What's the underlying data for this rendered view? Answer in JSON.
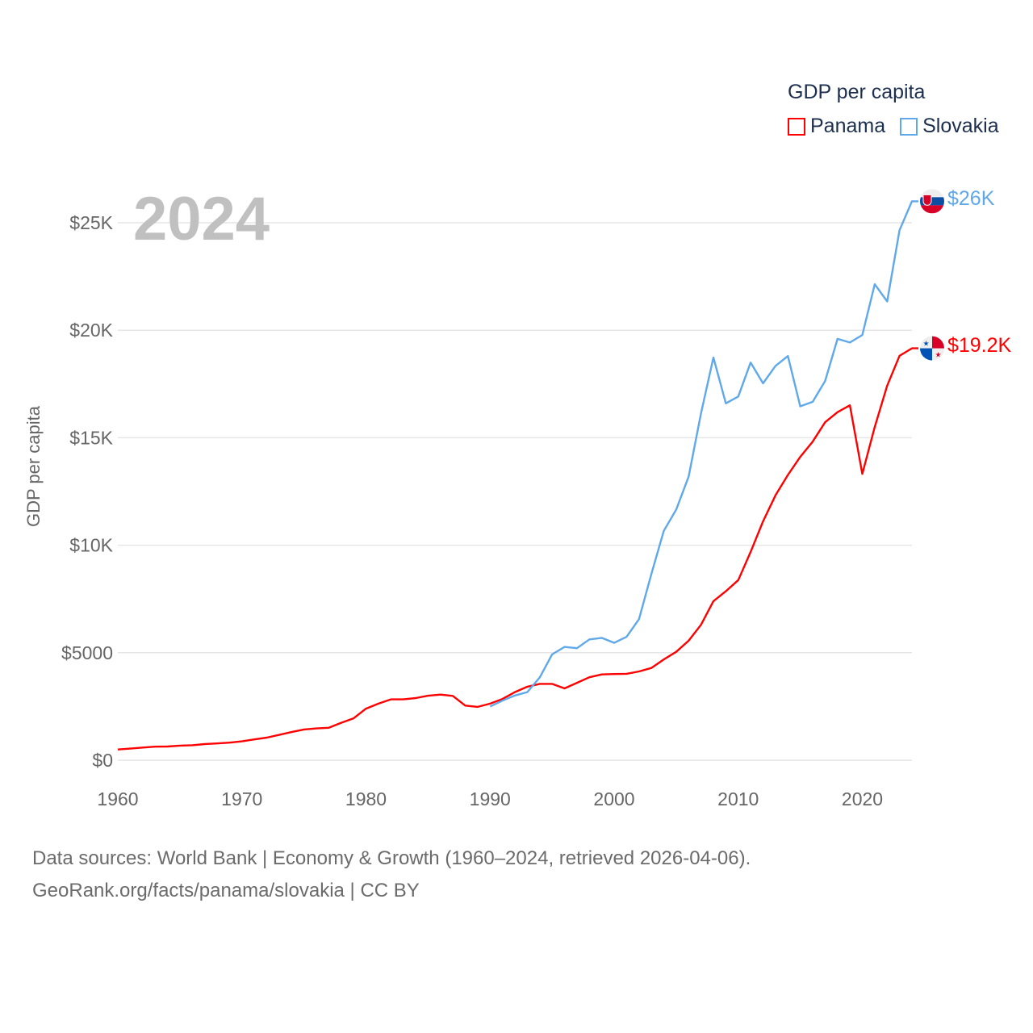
{
  "chart_data": {
    "type": "line",
    "title": "GDP per capita",
    "year_label": "2024",
    "ylabel": "GDP per capita",
    "xlabel": "",
    "xlim": [
      1960,
      2024
    ],
    "ylim": [
      0,
      25000
    ],
    "grid": true,
    "legend_placement": "top-right",
    "x_ticks": [
      1960,
      1970,
      1980,
      1990,
      2000,
      2010,
      2020
    ],
    "x_tick_labels": [
      "1960",
      "1970",
      "1980",
      "1990",
      "2000",
      "2010",
      "2020"
    ],
    "y_ticks": [
      0,
      5000,
      10000,
      15000,
      20000,
      25000
    ],
    "y_tick_labels": [
      "$0",
      "$5000",
      "$10K",
      "$15K",
      "$20K",
      "$25K"
    ],
    "series": [
      {
        "name": "Panama",
        "color": "#ff0000",
        "end_label": "$19.2K",
        "flag": "panama-flag",
        "start_year": 1960,
        "values": [
          500,
          540,
          590,
          630,
          640,
          680,
          700,
          750,
          780,
          820,
          880,
          970,
          1050,
          1180,
          1310,
          1430,
          1480,
          1510,
          1740,
          1950,
          2400,
          2630,
          2830,
          2830,
          2890,
          3000,
          3050,
          2990,
          2540,
          2480,
          2630,
          2850,
          3170,
          3420,
          3550,
          3550,
          3340,
          3600,
          3860,
          3990,
          4010,
          4020,
          4130,
          4290,
          4690,
          5040,
          5560,
          6300,
          7400,
          7860,
          8380,
          9690,
          11110,
          12320,
          13270,
          14110,
          14820,
          15720,
          16190,
          16510,
          13320,
          15500,
          17420,
          18810,
          19160
        ]
      },
      {
        "name": "Slovakia",
        "color": "#5fa8ea",
        "end_label": "$26K",
        "flag": "slovakia-flag",
        "start_year": 1990,
        "values": [
          2500,
          2770,
          3010,
          3170,
          3850,
          4920,
          5270,
          5210,
          5620,
          5690,
          5460,
          5740,
          6560,
          8660,
          10670,
          11660,
          13190,
          16130,
          18730,
          16600,
          16920,
          18500,
          17530,
          18340,
          18800,
          16460,
          16670,
          17640,
          19600,
          19430,
          19780,
          22140,
          21340,
          24650,
          26000
        ]
      }
    ]
  },
  "footer": {
    "line1": "Data sources: World Bank | Economy & Growth (1960–2024, retrieved 2026-04-06).",
    "line2": "GeoRank.org/facts/panama/slovakia | CC BY"
  }
}
